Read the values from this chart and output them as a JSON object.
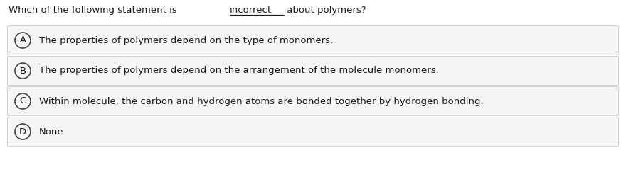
{
  "question_part1": "Which of the following statement is ",
  "question_underline": "incorrect",
  "question_part2": " about polymers?",
  "options": [
    {
      "label": "A",
      "text": "The properties of polymers depend on the type of monomers."
    },
    {
      "label": "B",
      "text": "The properties of polymers depend on the arrangement of the molecule monomers."
    },
    {
      "label": "C",
      "text": "Within molecule, the carbon and hydrogen atoms are bonded together by hydrogen bonding."
    },
    {
      "label": "D",
      "text": "None"
    }
  ],
  "bg_color": "#ffffff",
  "option_bg_color": "#f5f5f5",
  "option_border_color": "#d0d0d0",
  "text_color": "#1a1a1a",
  "circle_edge_color": "#444444",
  "font_size": 9.5,
  "question_font_size": 9.5,
  "label_font_size": 9.5,
  "fig_width": 8.8,
  "fig_height": 2.43,
  "dpi": 100
}
